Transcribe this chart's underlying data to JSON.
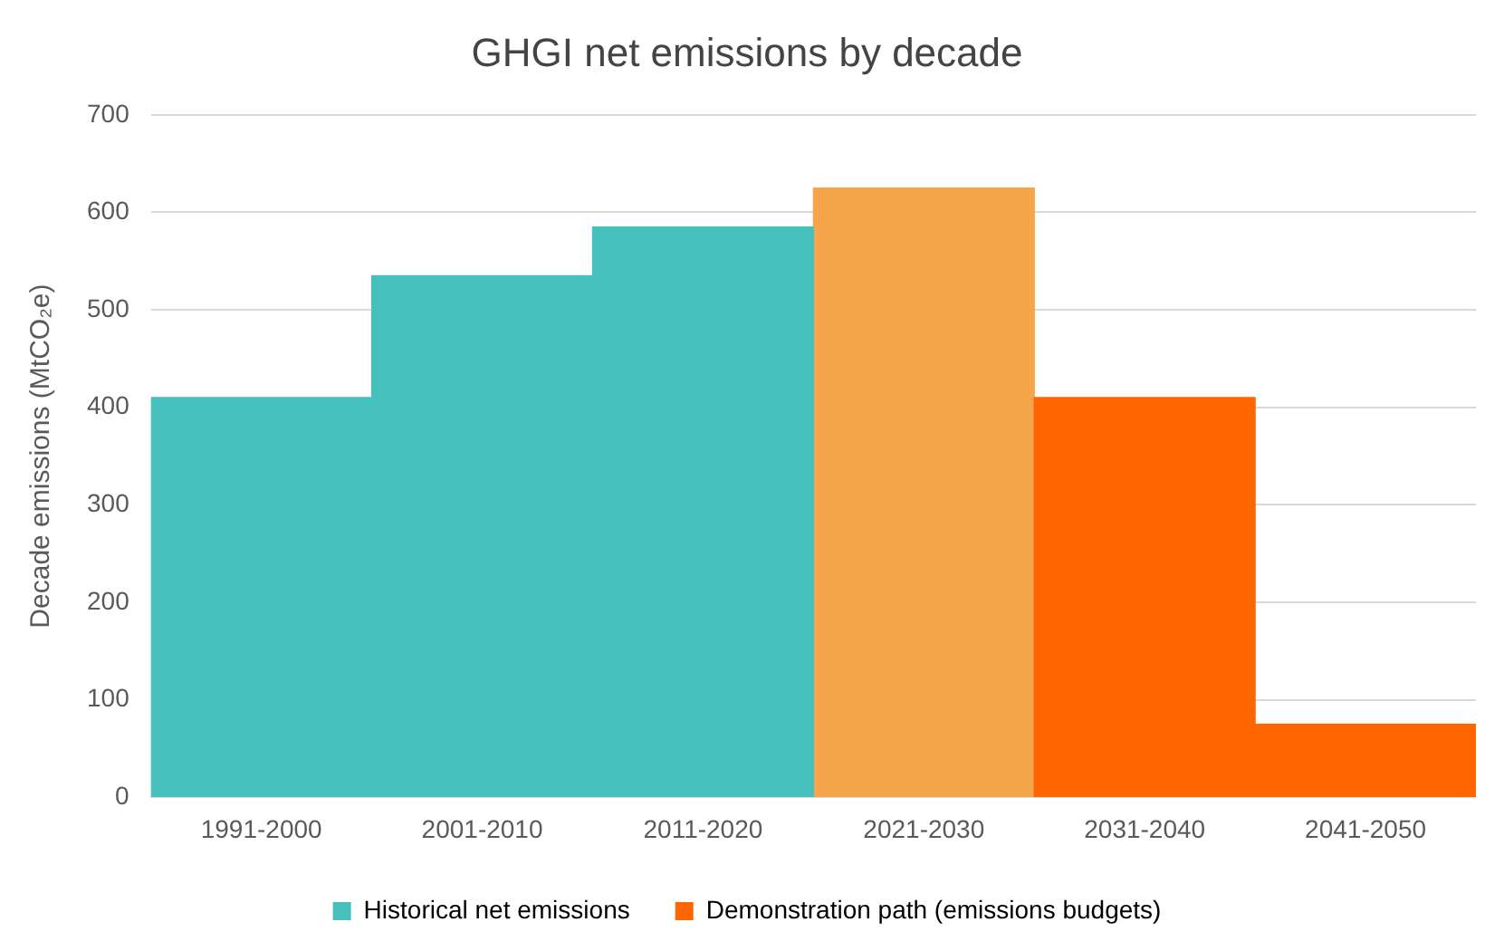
{
  "chart_data": {
    "type": "bar",
    "title": "GHGI net emissions by decade",
    "ylabel": "Decade emissions (MtCO₂e)",
    "categories": [
      "1991-2000",
      "2001-2010",
      "2011-2020",
      "2021-2030",
      "2031-2040",
      "2041-2050"
    ],
    "series": [
      {
        "name": "Historical net emissions",
        "color": "#45c0bd",
        "values": [
          410,
          535,
          585,
          null,
          null,
          null
        ]
      },
      {
        "name": "Demonstration path (emissions budgets)",
        "color": "#ff6600",
        "colors": [
          "#ff6600",
          "#ff6600",
          "#ff6600",
          "#f7a54a",
          "#ff6600",
          "#ff6600"
        ],
        "values": [
          null,
          null,
          null,
          625,
          410,
          75
        ]
      }
    ],
    "stacked": true,
    "ylim": [
      0,
      700
    ],
    "yticks": [
      0,
      100,
      200,
      300,
      400,
      500,
      600,
      700
    ],
    "grid": "y",
    "legend": "bottom"
  }
}
